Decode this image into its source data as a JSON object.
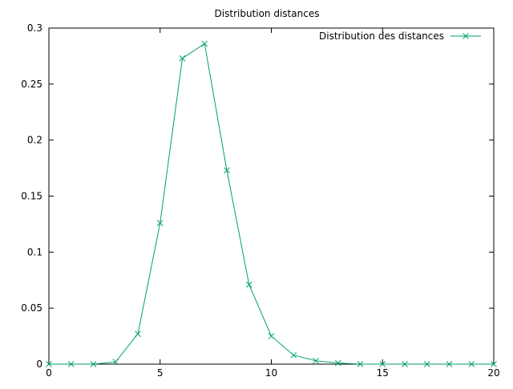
{
  "chart_data": {
    "type": "line",
    "title": "Distribution distances",
    "xlabel": "",
    "ylabel": "",
    "xlim": [
      0,
      20
    ],
    "ylim": [
      0,
      0.3
    ],
    "x_ticks": [
      0,
      5,
      10,
      15,
      20
    ],
    "y_ticks": [
      0,
      0.05,
      0.1,
      0.15,
      0.2,
      0.25,
      0.3
    ],
    "x_tick_labels": [
      "0",
      "5",
      "10",
      "15",
      "20"
    ],
    "y_tick_labels": [
      "0",
      "0.05",
      "0.1",
      "0.15",
      "0.2",
      "0.25",
      "0.3"
    ],
    "grid": false,
    "legend_position": "top-right",
    "series": [
      {
        "name": "Distribution des distances",
        "color": "#009e73",
        "marker": "x",
        "x": [
          0,
          1,
          2,
          3,
          4,
          5,
          6,
          7,
          8,
          9,
          10,
          11,
          12,
          13,
          14,
          15,
          16,
          17,
          18,
          19,
          20
        ],
        "y": [
          0,
          0,
          0,
          0.002,
          0.027,
          0.126,
          0.273,
          0.286,
          0.173,
          0.071,
          0.025,
          0.008,
          0.003,
          0.001,
          0,
          0,
          0,
          0,
          0,
          0,
          0
        ]
      }
    ]
  }
}
